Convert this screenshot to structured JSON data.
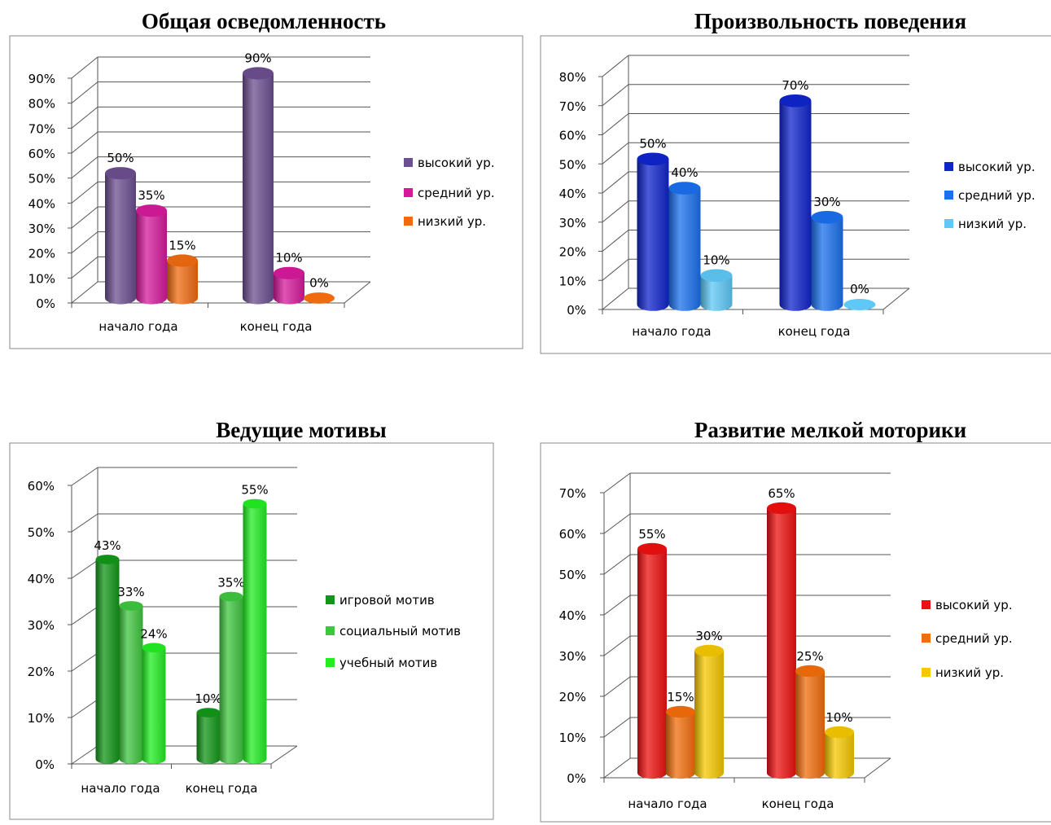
{
  "chart_data": [
    {
      "type": "bar",
      "title": "Общая осведомленность",
      "categories": [
        "начало года",
        "конец года"
      ],
      "series": [
        {
          "name": "высокий ур.",
          "values": [
            50,
            90
          ],
          "color": "#6b4f8f"
        },
        {
          "name": "средний ур.",
          "values": [
            35,
            10
          ],
          "color": "#d6199b"
        },
        {
          "name": "низкий ур.",
          "values": [
            15,
            0
          ],
          "color": "#f06a10"
        }
      ],
      "data_labels": [
        [
          "50%",
          "90%"
        ],
        [
          "35%",
          "10%"
        ],
        [
          "15%",
          "0%"
        ]
      ],
      "yticks": [
        "0%",
        "10%",
        "20%",
        "30%",
        "40%",
        "50%",
        "60%",
        "70%",
        "80%",
        "90%"
      ],
      "ylim": [
        0,
        90
      ],
      "legend": "right",
      "grid": true,
      "style": "3d-cylinder"
    },
    {
      "type": "bar",
      "title": "Произвольность поведения",
      "categories": [
        "начало года",
        "конец года"
      ],
      "series": [
        {
          "name": "высокий ур.",
          "values": [
            50,
            70
          ],
          "color": "#1024cc"
        },
        {
          "name": "средний ур.",
          "values": [
            40,
            30
          ],
          "color": "#1a70ee"
        },
        {
          "name": "низкий ур.",
          "values": [
            10,
            0
          ],
          "color": "#5ec8f6"
        }
      ],
      "data_labels": [
        [
          "50%",
          "70%"
        ],
        [
          "40%",
          "30%"
        ],
        [
          "10%",
          "0%"
        ]
      ],
      "yticks": [
        "0%",
        "10%",
        "20%",
        "30%",
        "40%",
        "50%",
        "60%",
        "70%",
        "80%"
      ],
      "ylim": [
        0,
        80
      ],
      "legend": "right",
      "grid": true,
      "style": "3d-cylinder"
    },
    {
      "type": "bar",
      "title": "Ведущие мотивы",
      "categories": [
        "начало года",
        "конец года"
      ],
      "series": [
        {
          "name": "игровой мотив",
          "values": [
            43,
            10
          ],
          "color": "#129618"
        },
        {
          "name": "социальный мотив",
          "values": [
            33,
            35
          ],
          "color": "#3fc63f"
        },
        {
          "name": "учебный мотив",
          "values": [
            24,
            55
          ],
          "color": "#22ee22"
        }
      ],
      "data_labels": [
        [
          "43%",
          "10%"
        ],
        [
          "33%",
          "35%"
        ],
        [
          "24%",
          "55%"
        ]
      ],
      "yticks": [
        "0%",
        "10%",
        "20%",
        "30%",
        "40%",
        "50%",
        "60%"
      ],
      "ylim": [
        0,
        60
      ],
      "legend": "right",
      "grid": true,
      "style": "3d-cylinder"
    },
    {
      "type": "bar",
      "title": "Развитие мелкой моторики",
      "categories": [
        "начало года",
        "конец года"
      ],
      "series": [
        {
          "name": "высокий ур.",
          "values": [
            55,
            65
          ],
          "color": "#ee1010"
        },
        {
          "name": "средний ур.",
          "values": [
            15,
            25
          ],
          "color": "#f26d0c"
        },
        {
          "name": "низкий ур.",
          "values": [
            30,
            10
          ],
          "color": "#f5c800"
        }
      ],
      "data_labels": [
        [
          "55%",
          "65%"
        ],
        [
          "15%",
          "25%"
        ],
        [
          "30%",
          "10%"
        ]
      ],
      "yticks": [
        "0%",
        "10%",
        "20%",
        "30%",
        "40%",
        "50%",
        "60%",
        "70%"
      ],
      "ylim": [
        0,
        70
      ],
      "legend": "right",
      "grid": true,
      "style": "3d-cylinder"
    }
  ]
}
